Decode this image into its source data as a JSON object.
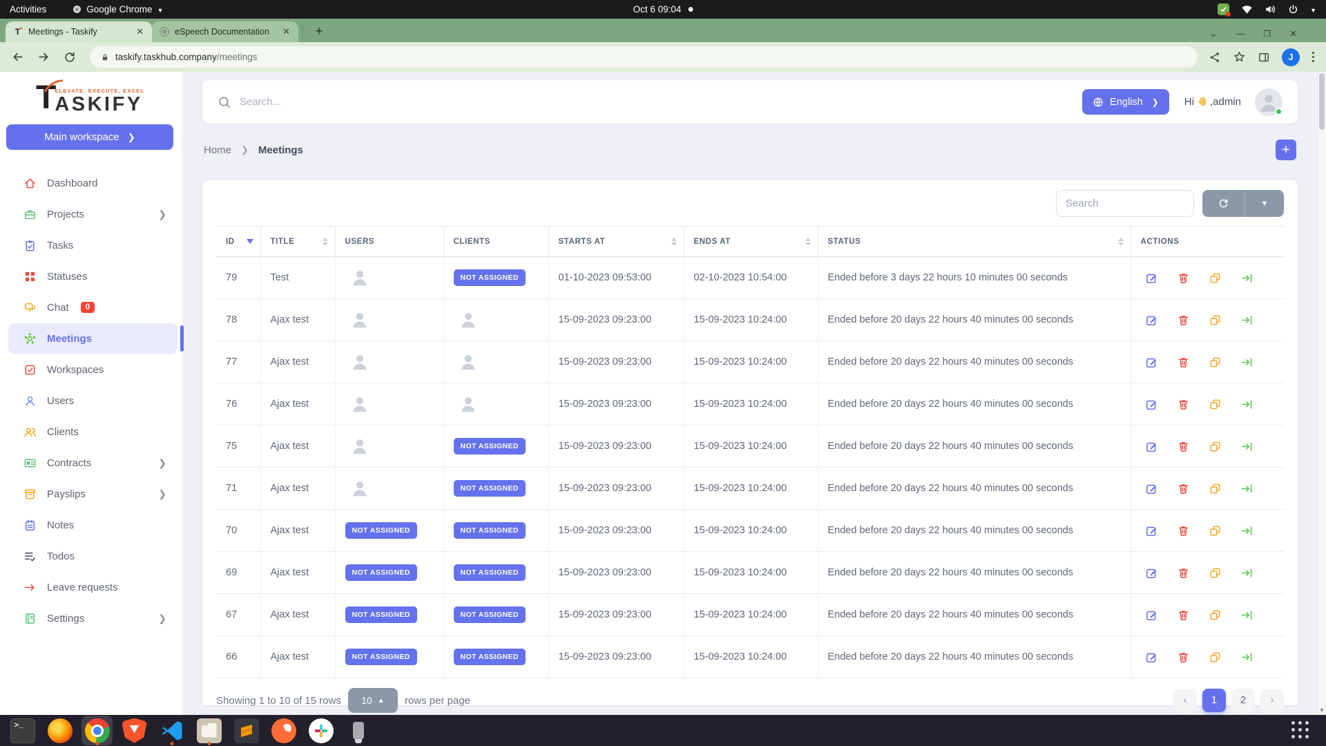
{
  "os": {
    "activities_label": "Activities",
    "app_menu_label": "Google Chrome",
    "clock": "Oct 6 09:04",
    "tray_icons": [
      "screenshot-indicator",
      "wifi",
      "volume",
      "power",
      "menu-caret"
    ]
  },
  "browser": {
    "tabs": [
      {
        "title": "Meetings - Taskify",
        "favicon": "taskify",
        "active": true
      },
      {
        "title": "eSpeech Documentation",
        "favicon": "globe",
        "active": false
      }
    ],
    "url": {
      "host": "taskify.taskhub.company",
      "path": "/meetings"
    },
    "profile_initial": "J"
  },
  "colors": {
    "accent": "#6571ec",
    "badge": "#6472ee",
    "danger": "#f0483e",
    "warning": "#f5a623",
    "success": "#57c24a"
  },
  "app": {
    "logo": {
      "t": "T",
      "rest": "ASKIFY",
      "tagline": "ELEVATE, EXECUTE, EXCEL"
    },
    "workspace_button": "Main workspace",
    "sidebar": [
      {
        "label": "Dashboard",
        "icon": "home",
        "color": "#f0483e"
      },
      {
        "label": "Projects",
        "icon": "briefcase",
        "color": "#5fc27e",
        "chevron": true
      },
      {
        "label": "Tasks",
        "icon": "clipboard",
        "color": "#6571ec"
      },
      {
        "label": "Statuses",
        "icon": "grid",
        "color": "#f0483e"
      },
      {
        "label": "Chat",
        "icon": "chat",
        "color": "#f7a614",
        "badge": "0"
      },
      {
        "label": "Meetings",
        "icon": "hub",
        "color": "#56ca1d",
        "active": true
      },
      {
        "label": "Workspaces",
        "icon": "checkbox",
        "color": "#f0483e"
      },
      {
        "label": "Users",
        "icon": "user",
        "color": "#6d8dfd"
      },
      {
        "label": "Clients",
        "icon": "users",
        "color": "#f7a614"
      },
      {
        "label": "Contracts",
        "icon": "idcard",
        "color": "#5fc27e",
        "chevron": true
      },
      {
        "label": "Payslips",
        "icon": "archive",
        "color": "#f7a614",
        "chevron": true
      },
      {
        "label": "Notes",
        "icon": "notepad",
        "color": "#6571ec"
      },
      {
        "label": "Todos",
        "icon": "listcheck",
        "color": "#3b4453"
      },
      {
        "label": "Leave requests",
        "icon": "arrowright",
        "color": "#f0483e"
      },
      {
        "label": "Settings",
        "icon": "book",
        "color": "#5fc27e",
        "chevron": true
      }
    ],
    "header": {
      "search_placeholder": "Search...",
      "language_label": "English",
      "greeting_pre": "Hi",
      "greeting_emoji": "wave",
      "greeting_post": ",admin"
    },
    "breadcrumb": {
      "home": "Home",
      "current": "Meetings"
    },
    "table": {
      "search_placeholder": "Search",
      "not_assigned_label": "NOT ASSIGNED",
      "columns": [
        {
          "label": "ID",
          "sort": "desc"
        },
        {
          "label": "TITLE",
          "sort": "both"
        },
        {
          "label": "USERS"
        },
        {
          "label": "CLIENTS"
        },
        {
          "label": "STARTS AT",
          "sort": "both"
        },
        {
          "label": "ENDS AT",
          "sort": "both"
        },
        {
          "label": "STATUS",
          "sort": "both"
        },
        {
          "label": "ACTIONS"
        }
      ],
      "rows": [
        {
          "id": "79",
          "title": "Test",
          "users": "avatar",
          "clients": "badge",
          "starts": "01-10-2023 09:53:00",
          "ends": "02-10-2023 10:54:00",
          "status": "Ended before 3 days 22 hours 10 minutes 00 seconds"
        },
        {
          "id": "78",
          "title": "Ajax test",
          "users": "avatar",
          "clients": "avatar",
          "starts": "15-09-2023 09:23:00",
          "ends": "15-09-2023 10:24:00",
          "status": "Ended before 20 days 22 hours 40 minutes 00 seconds"
        },
        {
          "id": "77",
          "title": "Ajax test",
          "users": "avatar",
          "clients": "avatar",
          "starts": "15-09-2023 09:23:00",
          "ends": "15-09-2023 10:24:00",
          "status": "Ended before 20 days 22 hours 40 minutes 00 seconds"
        },
        {
          "id": "76",
          "title": "Ajax test",
          "users": "avatar",
          "clients": "avatar",
          "starts": "15-09-2023 09:23:00",
          "ends": "15-09-2023 10:24:00",
          "status": "Ended before 20 days 22 hours 40 minutes 00 seconds"
        },
        {
          "id": "75",
          "title": "Ajax test",
          "users": "avatar",
          "clients": "badge",
          "starts": "15-09-2023 09:23:00",
          "ends": "15-09-2023 10:24:00",
          "status": "Ended before 20 days 22 hours 40 minutes 00 seconds"
        },
        {
          "id": "71",
          "title": "Ajax test",
          "users": "avatar",
          "clients": "badge",
          "starts": "15-09-2023 09:23:00",
          "ends": "15-09-2023 10:24:00",
          "status": "Ended before 20 days 22 hours 40 minutes 00 seconds"
        },
        {
          "id": "70",
          "title": "Ajax test",
          "users": "badge",
          "clients": "badge",
          "starts": "15-09-2023 09:23:00",
          "ends": "15-09-2023 10:24:00",
          "status": "Ended before 20 days 22 hours 40 minutes 00 seconds"
        },
        {
          "id": "69",
          "title": "Ajax test",
          "users": "badge",
          "clients": "badge",
          "starts": "15-09-2023 09:23:00",
          "ends": "15-09-2023 10:24:00",
          "status": "Ended before 20 days 22 hours 40 minutes 00 seconds"
        },
        {
          "id": "67",
          "title": "Ajax test",
          "users": "badge",
          "clients": "badge",
          "starts": "15-09-2023 09:23:00",
          "ends": "15-09-2023 10:24:00",
          "status": "Ended before 20 days 22 hours 40 minutes 00 seconds"
        },
        {
          "id": "66",
          "title": "Ajax test",
          "users": "badge",
          "clients": "badge",
          "starts": "15-09-2023 09:23:00",
          "ends": "15-09-2023 10:24:00",
          "status": "Ended before 20 days 22 hours 40 minutes 00 seconds"
        }
      ],
      "actions": [
        "edit",
        "delete",
        "duplicate",
        "open"
      ],
      "footer": {
        "showing": "Showing 1 to 10 of 15 rows",
        "page_size": "10",
        "rows_per_page": "rows per page",
        "prev": "‹",
        "next": "›",
        "pages": [
          "1",
          "2"
        ],
        "active_page": "1"
      }
    }
  },
  "dock": [
    {
      "name": "terminal"
    },
    {
      "name": "firefox"
    },
    {
      "name": "chrome",
      "active": true,
      "running": true
    },
    {
      "name": "brave"
    },
    {
      "name": "vscode",
      "running": true
    },
    {
      "name": "files",
      "running": true
    },
    {
      "name": "sublime"
    },
    {
      "name": "postman"
    },
    {
      "name": "slack"
    },
    {
      "name": "usb"
    }
  ]
}
